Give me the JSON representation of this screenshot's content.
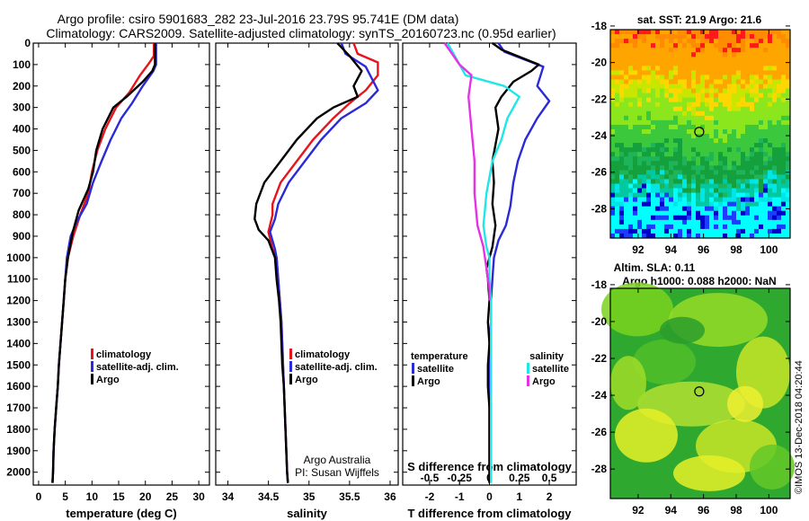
{
  "title_line1": "Argo profile: csiro 5901683_282 23-Jul-2016 23.79S 95.741E (DM data)",
  "title_line2": "Climatology: CARS2009. Satellite-adjusted climatology: synTS_20160723.nc (0.95d earlier)",
  "side_text": "©IMOS 13-Dec-2018 04:20:44",
  "credit_line1": "Argo Australia",
  "credit_line2": "PI: Susan Wijffels",
  "colors": {
    "climatology": "#e8141c",
    "satellite": "#2a2ad8",
    "argo": "#000000",
    "sat_salinity": "#22e6e6",
    "argo_salinity": "#e632e6"
  },
  "chart_data": [
    {
      "type": "line",
      "id": "temperature",
      "xlabel": "temperature (deg C)",
      "xlim": [
        -1,
        32
      ],
      "xticks": [
        0,
        5,
        10,
        15,
        20,
        25,
        30
      ],
      "ylim": [
        0,
        2060
      ],
      "yticks": [
        0,
        100,
        200,
        300,
        400,
        500,
        600,
        700,
        800,
        900,
        1000,
        1100,
        1200,
        1300,
        1400,
        1500,
        1600,
        1700,
        1800,
        1900,
        2000
      ],
      "legend": [
        "climatology",
        "satellite-adj. clim.",
        "Argo"
      ],
      "series": [
        {
          "name": "climatology",
          "color": "#e8141c",
          "points": [
            [
              21.6,
              0
            ],
            [
              21.6,
              60
            ],
            [
              20.5,
              100
            ],
            [
              19,
              150
            ],
            [
              17,
              230
            ],
            [
              14.5,
              300
            ],
            [
              12.5,
              400
            ],
            [
              11,
              500
            ],
            [
              10,
              600
            ],
            [
              9.3,
              700
            ],
            [
              7.8,
              800
            ],
            [
              6.5,
              900
            ],
            [
              5.5,
              1000
            ],
            [
              5,
              1100
            ],
            [
              4.7,
              1200
            ],
            [
              4.4,
              1300
            ],
            [
              4.1,
              1400
            ],
            [
              3.8,
              1500
            ],
            [
              3.6,
              1600
            ],
            [
              3.3,
              1700
            ],
            [
              3,
              1800
            ],
            [
              2.8,
              1900
            ],
            [
              2.7,
              2000
            ],
            [
              2.6,
              2050
            ]
          ]
        },
        {
          "name": "satellite-adj. clim.",
          "color": "#2a2ad8",
          "points": [
            [
              22,
              0
            ],
            [
              22,
              100
            ],
            [
              21.5,
              130
            ],
            [
              19.5,
              200
            ],
            [
              17.5,
              280
            ],
            [
              15.5,
              350
            ],
            [
              13.5,
              450
            ],
            [
              11.8,
              550
            ],
            [
              10.2,
              650
            ],
            [
              9,
              750
            ],
            [
              7.2,
              830
            ],
            [
              6,
              900
            ],
            [
              5.3,
              1000
            ],
            [
              5,
              1100
            ],
            [
              4.7,
              1200
            ],
            [
              4.4,
              1300
            ],
            [
              4.1,
              1400
            ],
            [
              3.8,
              1500
            ],
            [
              3.6,
              1600
            ],
            [
              3.3,
              1700
            ],
            [
              3,
              1800
            ],
            [
              2.8,
              1900
            ],
            [
              2.7,
              2000
            ],
            [
              2.6,
              2050
            ]
          ]
        },
        {
          "name": "Argo",
          "color": "#000000",
          "points": [
            [
              21.8,
              0
            ],
            [
              21.8,
              100
            ],
            [
              21.3,
              130
            ],
            [
              19.5,
              180
            ],
            [
              16.5,
              250
            ],
            [
              14,
              300
            ],
            [
              12,
              400
            ],
            [
              10.8,
              500
            ],
            [
              10.2,
              600
            ],
            [
              9.3,
              680
            ],
            [
              7.5,
              780
            ],
            [
              6.4,
              880
            ],
            [
              5.5,
              1000
            ],
            [
              5,
              1100
            ],
            [
              4.7,
              1200
            ],
            [
              4.4,
              1300
            ],
            [
              4.1,
              1400
            ],
            [
              3.8,
              1500
            ],
            [
              3.6,
              1600
            ],
            [
              3.3,
              1700
            ],
            [
              3,
              1800
            ],
            [
              2.8,
              1900
            ],
            [
              2.7,
              2000
            ],
            [
              2.6,
              2050
            ]
          ]
        }
      ]
    },
    {
      "type": "line",
      "id": "salinity",
      "xlabel": "salinity",
      "xlim": [
        33.85,
        36.1
      ],
      "xticks": [
        34,
        34.5,
        35,
        35.5,
        36
      ],
      "xticklabels": [
        "34",
        "34.5",
        "35",
        "35.5",
        "36"
      ],
      "ylim": [
        0,
        2060
      ],
      "legend": [
        "climatology",
        "satellite-adj. clim.",
        "Argo"
      ],
      "series": [
        {
          "name": "climatology",
          "color": "#e8141c",
          "points": [
            [
              35.55,
              0
            ],
            [
              35.6,
              50
            ],
            [
              35.85,
              90
            ],
            [
              35.85,
              150
            ],
            [
              35.7,
              220
            ],
            [
              35.5,
              280
            ],
            [
              35.3,
              350
            ],
            [
              35.05,
              450
            ],
            [
              34.85,
              550
            ],
            [
              34.65,
              650
            ],
            [
              34.55,
              750
            ],
            [
              34.55,
              800
            ],
            [
              34.5,
              880
            ],
            [
              34.55,
              960
            ],
            [
              34.6,
              1000
            ],
            [
              34.62,
              1100
            ],
            [
              34.64,
              1200
            ],
            [
              34.66,
              1300
            ],
            [
              34.67,
              1400
            ],
            [
              34.68,
              1500
            ],
            [
              34.69,
              1600
            ],
            [
              34.7,
              1700
            ],
            [
              34.71,
              1800
            ],
            [
              34.72,
              1900
            ],
            [
              34.73,
              2000
            ],
            [
              34.74,
              2050
            ]
          ]
        },
        {
          "name": "satellite-adj. clim.",
          "color": "#2a2ad8",
          "points": [
            [
              35.4,
              0
            ],
            [
              35.45,
              50
            ],
            [
              35.7,
              110
            ],
            [
              35.85,
              220
            ],
            [
              35.7,
              280
            ],
            [
              35.4,
              350
            ],
            [
              35.15,
              450
            ],
            [
              34.95,
              550
            ],
            [
              34.75,
              650
            ],
            [
              34.62,
              750
            ],
            [
              34.58,
              820
            ],
            [
              34.52,
              880
            ],
            [
              34.58,
              960
            ],
            [
              34.6,
              1000
            ],
            [
              34.62,
              1100
            ],
            [
              34.64,
              1200
            ],
            [
              34.66,
              1300
            ],
            [
              34.67,
              1400
            ],
            [
              34.68,
              1500
            ],
            [
              34.69,
              1600
            ],
            [
              34.7,
              1700
            ],
            [
              34.71,
              1800
            ],
            [
              34.72,
              1900
            ],
            [
              34.73,
              2000
            ],
            [
              34.74,
              2050
            ]
          ]
        },
        {
          "name": "Argo",
          "color": "#000000",
          "points": [
            [
              35.35,
              0
            ],
            [
              35.5,
              60
            ],
            [
              35.65,
              130
            ],
            [
              35.55,
              200
            ],
            [
              35.6,
              250
            ],
            [
              35.3,
              300
            ],
            [
              35.1,
              350
            ],
            [
              34.85,
              450
            ],
            [
              34.65,
              550
            ],
            [
              34.45,
              650
            ],
            [
              34.35,
              750
            ],
            [
              34.33,
              820
            ],
            [
              34.38,
              870
            ],
            [
              34.5,
              920
            ],
            [
              34.58,
              1000
            ],
            [
              34.6,
              1100
            ],
            [
              34.63,
              1200
            ],
            [
              34.65,
              1300
            ],
            [
              34.66,
              1400
            ],
            [
              34.67,
              1500
            ],
            [
              34.69,
              1600
            ],
            [
              34.7,
              1700
            ],
            [
              34.71,
              1800
            ],
            [
              34.72,
              1900
            ],
            [
              34.73,
              2000
            ],
            [
              34.74,
              2050
            ]
          ]
        }
      ]
    },
    {
      "type": "line",
      "id": "difference",
      "xlabel": "T difference from climatology",
      "xlabel_top": "S difference from climatology",
      "xlim": [
        -2.9,
        2.9
      ],
      "xticks": [
        -2,
        -1,
        0,
        1,
        2
      ],
      "xticks_top": [
        -0.5,
        -0.25,
        0,
        0.25,
        0.5
      ],
      "xticks_top_labels": [
        "-0.5",
        "-0.25",
        "0",
        "0.25",
        "0.5"
      ],
      "ylim": [
        0,
        2060
      ],
      "legend_left_title": "temperature",
      "legend_right_title": "salinity",
      "legend_left": [
        "satellite",
        "Argo"
      ],
      "legend_right": [
        "satellite",
        "Argo"
      ],
      "series": [
        {
          "name": "T satellite",
          "color": "#2a2ad8",
          "points": [
            [
              0.3,
              0
            ],
            [
              0.5,
              40
            ],
            [
              1.8,
              110
            ],
            [
              1.6,
              200
            ],
            [
              2,
              270
            ],
            [
              1.6,
              350
            ],
            [
              1.2,
              450
            ],
            [
              0.95,
              550
            ],
            [
              0.8,
              650
            ],
            [
              0.7,
              760
            ],
            [
              0.55,
              850
            ],
            [
              0.3,
              920
            ],
            [
              0.15,
              1000
            ],
            [
              0.1,
              1100
            ],
            [
              0.05,
              1200
            ],
            [
              0.05,
              1300
            ],
            [
              0.0,
              1400
            ],
            [
              0.0,
              1500
            ],
            [
              0.0,
              1600
            ],
            [
              0.0,
              1700
            ],
            [
              0.0,
              1800
            ],
            [
              0.0,
              1900
            ],
            [
              0,
              2000
            ],
            [
              0,
              2050
            ]
          ]
        },
        {
          "name": "T Argo",
          "color": "#000000",
          "points": [
            [
              0.1,
              0
            ],
            [
              0.4,
              30
            ],
            [
              1.65,
              100
            ],
            [
              1.4,
              130
            ],
            [
              0.8,
              180
            ],
            [
              0.4,
              250
            ],
            [
              0.2,
              300
            ],
            [
              0.3,
              400
            ],
            [
              0.1,
              550
            ],
            [
              0.15,
              650
            ],
            [
              0.1,
              750
            ],
            [
              0.2,
              850
            ],
            [
              0.1,
              950
            ],
            [
              -0.1,
              1050
            ],
            [
              -0.05,
              1100
            ],
            [
              0,
              1200
            ],
            [
              -0.05,
              1300
            ],
            [
              0,
              1400
            ],
            [
              -0.05,
              1500
            ],
            [
              -0.05,
              1600
            ],
            [
              0,
              1700
            ],
            [
              0,
              1800
            ],
            [
              0,
              1900
            ],
            [
              0,
              2000
            ],
            [
              0,
              2050
            ]
          ]
        },
        {
          "name": "S satellite",
          "color": "#22e6e6",
          "points": [
            [
              -1.4,
              0
            ],
            [
              -1.2,
              50
            ],
            [
              -0.8,
              150
            ],
            [
              0.5,
              200
            ],
            [
              1.0,
              250
            ],
            [
              0.6,
              350
            ],
            [
              0.4,
              450
            ],
            [
              0.1,
              550
            ],
            [
              -0.1,
              700
            ],
            [
              -0.2,
              850
            ],
            [
              -0.1,
              950
            ],
            [
              0,
              1000
            ],
            [
              0,
              1100
            ],
            [
              0.05,
              1200
            ],
            [
              0.05,
              1300
            ],
            [
              0.05,
              1400
            ],
            [
              0.05,
              1500
            ],
            [
              0.05,
              1600
            ],
            [
              0.05,
              1700
            ],
            [
              0.05,
              1800
            ],
            [
              0.05,
              1900
            ],
            [
              0.05,
              2000
            ],
            [
              0.05,
              2050
            ]
          ]
        },
        {
          "name": "S Argo",
          "color": "#e632e6",
          "points": [
            [
              -1.5,
              0
            ],
            [
              -1.2,
              60
            ],
            [
              -1.0,
              100
            ],
            [
              -0.6,
              150
            ],
            [
              -0.7,
              250
            ],
            [
              -0.6,
              400
            ],
            [
              -0.5,
              550
            ],
            [
              -0.5,
              700
            ],
            [
              -0.4,
              850
            ],
            [
              -0.2,
              950
            ],
            [
              -0.1,
              1050
            ],
            [
              0,
              1150
            ],
            [
              0,
              1200
            ]
          ]
        }
      ]
    }
  ],
  "maps": {
    "lon_ticks": [
      92,
      94,
      96,
      98,
      100
    ],
    "lat_ticks": [
      -18,
      -20,
      -22,
      -24,
      -26,
      -28
    ],
    "lon_range": [
      90.3,
      101.3
    ],
    "lat_range": [
      -29.6,
      -18.2
    ],
    "marker": {
      "lon": 95.74,
      "lat": -23.79
    },
    "sst": {
      "title": "sat. SST: 21.9 Argo: 21.6"
    },
    "sla": {
      "title_line1": "Altim. SLA: 0.11",
      "title_line2": "Argo h1000: 0.088 h2000: NaN"
    }
  }
}
